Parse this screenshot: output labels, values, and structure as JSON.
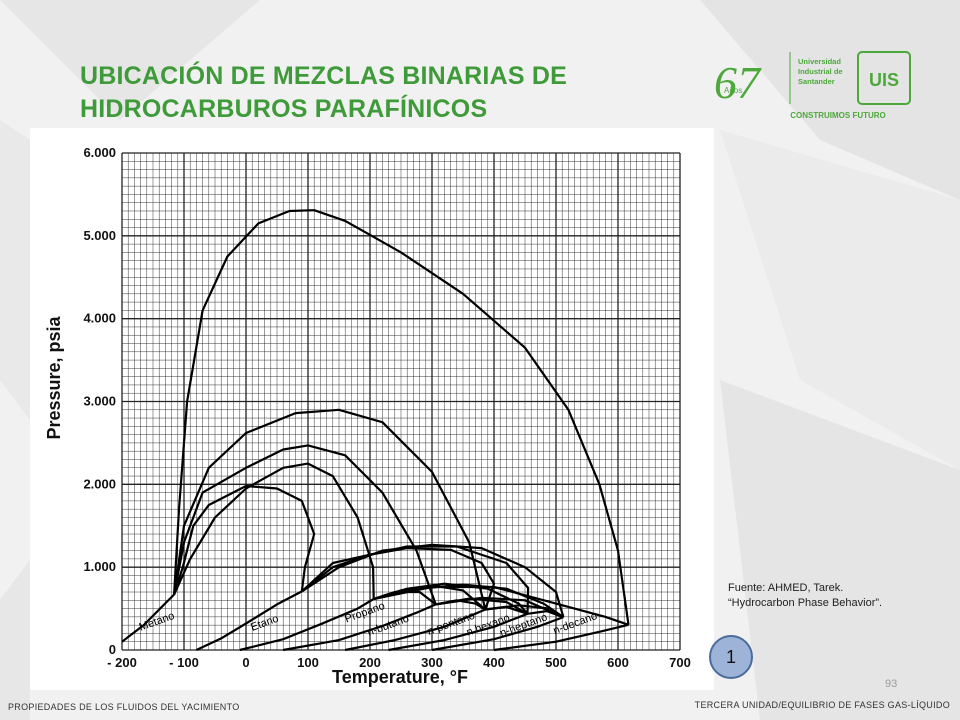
{
  "slide": {
    "title_line1": "UBICACIÓN DE MEZCLAS BINARIAS DE",
    "title_line2": "HIDROCARBUROS PARAFÍNICOS",
    "source_line1": "Fuente: AHMED, Tarek.",
    "source_line2": "“Hydrocarbon Phase Behavior”.",
    "badge": "1",
    "slide_number": "93",
    "footer_left": "PROPIEDADES DE LOS FLUIDOS DEL YACIMIENTO",
    "footer_right": "TERCERA UNIDAD/EQUILIBRIO DE FASES GAS-LÍQUIDO",
    "accent_color": "#3f9a3a"
  },
  "logo": {
    "anniversary_number": "67",
    "anniversary_word": "Años",
    "university_line1": "Universidad",
    "university_line2": "Industrial de",
    "university_line3": "Santander",
    "acronym": "UIS",
    "motto": "CONSTRUIMOS FUTURO",
    "color": "#4da83b"
  },
  "chart_data": {
    "type": "line",
    "xlabel": "Temperature, °F",
    "ylabel": "Pressure, psia",
    "xlim": [
      -200,
      700
    ],
    "ylim": [
      0,
      6000
    ],
    "x_ticks": [
      "- 200",
      "- 100",
      "0",
      "100",
      "200",
      "300",
      "400",
      "500",
      "600",
      "700"
    ],
    "x_tick_values": [
      -200,
      -100,
      0,
      100,
      200,
      300,
      400,
      500,
      600,
      700
    ],
    "y_ticks": [
      "0",
      "1.000",
      "2.000",
      "3.000",
      "4.000",
      "5.000",
      "6.000"
    ],
    "y_tick_values": [
      0,
      1000,
      2000,
      3000,
      4000,
      5000,
      6000
    ],
    "grid": true,
    "component_labels": [
      {
        "text": "Metano",
        "x": -170,
        "y": 230
      },
      {
        "text": "Etano",
        "x": 10,
        "y": 230
      },
      {
        "text": "Propano",
        "x": 162,
        "y": 330
      },
      {
        "text": "n-butano",
        "x": 198,
        "y": 170
      },
      {
        "text": "n-pentano",
        "x": 295,
        "y": 180
      },
      {
        "text": "n hexano",
        "x": 358,
        "y": 170
      },
      {
        "text": "n-heptano",
        "x": 412,
        "y": 160
      },
      {
        "text": "n-decano",
        "x": 498,
        "y": 190
      }
    ],
    "vapor_pressure_curves": [
      {
        "name": "Metano",
        "points": [
          [
            -200,
            100
          ],
          [
            -165,
            300
          ],
          [
            -116,
            670
          ]
        ]
      },
      {
        "name": "Etano",
        "points": [
          [
            -80,
            0
          ],
          [
            -40,
            140
          ],
          [
            0,
            320
          ],
          [
            50,
            550
          ],
          [
            90,
            708
          ]
        ]
      },
      {
        "name": "Propano",
        "points": [
          [
            -10,
            0
          ],
          [
            60,
            130
          ],
          [
            120,
            310
          ],
          [
            180,
            500
          ],
          [
            206,
            616
          ]
        ]
      },
      {
        "name": "n-butano",
        "points": [
          [
            60,
            0
          ],
          [
            150,
            120
          ],
          [
            220,
            290
          ],
          [
            275,
            450
          ],
          [
            306,
            551
          ]
        ]
      },
      {
        "name": "n-pentano",
        "points": [
          [
            160,
            0
          ],
          [
            240,
            120
          ],
          [
            320,
            280
          ],
          [
            386,
            489
          ]
        ]
      },
      {
        "name": "n hexano",
        "points": [
          [
            230,
            0
          ],
          [
            320,
            120
          ],
          [
            400,
            280
          ],
          [
            454,
            437
          ]
        ]
      },
      {
        "name": "n-heptano",
        "points": [
          [
            300,
            0
          ],
          [
            400,
            130
          ],
          [
            470,
            280
          ],
          [
            512,
            397
          ]
        ]
      },
      {
        "name": "n-decano",
        "points": [
          [
            400,
            0
          ],
          [
            500,
            100
          ],
          [
            570,
            220
          ],
          [
            617,
            304
          ]
        ]
      }
    ],
    "critical_loci": [
      {
        "name": "Metano–Etano",
        "points": [
          [
            -116,
            670
          ],
          [
            -102,
            1000
          ],
          [
            -85,
            1500
          ],
          [
            -60,
            1750
          ],
          [
            0,
            1980
          ],
          [
            50,
            1950
          ],
          [
            90,
            1800
          ],
          [
            110,
            1400
          ],
          [
            95,
            1000
          ],
          [
            90,
            708
          ]
        ]
      },
      {
        "name": "Metano–Propano",
        "points": [
          [
            -116,
            670
          ],
          [
            -90,
            1100
          ],
          [
            -50,
            1600
          ],
          [
            0,
            1950
          ],
          [
            60,
            2200
          ],
          [
            100,
            2250
          ],
          [
            140,
            2100
          ],
          [
            180,
            1600
          ],
          [
            205,
            1000
          ],
          [
            206,
            616
          ]
        ]
      },
      {
        "name": "Metano–n-butano",
        "points": [
          [
            -116,
            670
          ],
          [
            -100,
            1300
          ],
          [
            -70,
            1900
          ],
          [
            0,
            2200
          ],
          [
            60,
            2420
          ],
          [
            100,
            2470
          ],
          [
            160,
            2350
          ],
          [
            220,
            1900
          ],
          [
            275,
            1200
          ],
          [
            306,
            551
          ]
        ]
      },
      {
        "name": "Metano–n-pentano",
        "points": [
          [
            -116,
            670
          ],
          [
            -100,
            1500
          ],
          [
            -60,
            2200
          ],
          [
            0,
            2620
          ],
          [
            80,
            2860
          ],
          [
            150,
            2900
          ],
          [
            220,
            2750
          ],
          [
            300,
            2150
          ],
          [
            360,
            1300
          ],
          [
            386,
            489
          ]
        ]
      },
      {
        "name": "Metano–n-decano",
        "points": [
          [
            -116,
            670
          ],
          [
            -108,
            1700
          ],
          [
            -95,
            3000
          ],
          [
            -70,
            4100
          ],
          [
            -30,
            4750
          ],
          [
            20,
            5150
          ],
          [
            70,
            5300
          ],
          [
            110,
            5310
          ],
          [
            160,
            5180
          ],
          [
            250,
            4800
          ],
          [
            350,
            4300
          ],
          [
            450,
            3650
          ],
          [
            520,
            2900
          ],
          [
            570,
            2000
          ],
          [
            600,
            1200
          ],
          [
            617,
            304
          ]
        ]
      },
      {
        "name": "Etano–n-pentano",
        "points": [
          [
            90,
            708
          ],
          [
            140,
            1050
          ],
          [
            200,
            1150
          ],
          [
            260,
            1230
          ],
          [
            330,
            1210
          ],
          [
            380,
            1050
          ],
          [
            400,
            800
          ],
          [
            386,
            489
          ]
        ]
      },
      {
        "name": "Etano–n-hexano",
        "points": [
          [
            90,
            708
          ],
          [
            140,
            1000
          ],
          [
            200,
            1150
          ],
          [
            260,
            1250
          ],
          [
            340,
            1250
          ],
          [
            420,
            1050
          ],
          [
            455,
            750
          ],
          [
            454,
            437
          ]
        ]
      },
      {
        "name": "Etano–n-heptano",
        "points": [
          [
            90,
            708
          ],
          [
            150,
            1000
          ],
          [
            220,
            1200
          ],
          [
            300,
            1270
          ],
          [
            380,
            1230
          ],
          [
            450,
            1000
          ],
          [
            500,
            700
          ],
          [
            512,
            397
          ]
        ]
      },
      {
        "name": "Propano–n-butano",
        "points": [
          [
            206,
            616
          ],
          [
            240,
            700
          ],
          [
            280,
            700
          ],
          [
            306,
            551
          ]
        ]
      },
      {
        "name": "Propano–n-pentano",
        "points": [
          [
            206,
            616
          ],
          [
            250,
            720
          ],
          [
            300,
            780
          ],
          [
            350,
            720
          ],
          [
            386,
            489
          ]
        ]
      },
      {
        "name": "Propano–n-hexano",
        "points": [
          [
            206,
            616
          ],
          [
            260,
            740
          ],
          [
            320,
            800
          ],
          [
            390,
            740
          ],
          [
            440,
            560
          ],
          [
            454,
            437
          ]
        ]
      },
      {
        "name": "Propano–n-heptano",
        "points": [
          [
            206,
            616
          ],
          [
            280,
            740
          ],
          [
            350,
            790
          ],
          [
            420,
            740
          ],
          [
            480,
            560
          ],
          [
            512,
            397
          ]
        ]
      },
      {
        "name": "Propano–n-decano",
        "points": [
          [
            206,
            616
          ],
          [
            300,
            760
          ],
          [
            400,
            760
          ],
          [
            500,
            560
          ],
          [
            580,
            400
          ],
          [
            617,
            304
          ]
        ]
      },
      {
        "name": "n-butano–n-pentano",
        "points": [
          [
            306,
            551
          ],
          [
            340,
            600
          ],
          [
            370,
            560
          ],
          [
            386,
            489
          ]
        ]
      },
      {
        "name": "n-butano–n-hexano",
        "points": [
          [
            306,
            551
          ],
          [
            360,
            620
          ],
          [
            420,
            580
          ],
          [
            454,
            437
          ]
        ]
      },
      {
        "name": "n-butano–n-heptano",
        "points": [
          [
            306,
            551
          ],
          [
            380,
            630
          ],
          [
            450,
            600
          ],
          [
            512,
            397
          ]
        ]
      },
      {
        "name": "n-pentano–n-hexano",
        "points": [
          [
            386,
            489
          ],
          [
            420,
            520
          ],
          [
            454,
            437
          ]
        ]
      },
      {
        "name": "n-pentano–n-heptano",
        "points": [
          [
            386,
            489
          ],
          [
            440,
            540
          ],
          [
            490,
            500
          ],
          [
            512,
            397
          ]
        ]
      },
      {
        "name": "n-hexano–n-heptano",
        "points": [
          [
            454,
            437
          ],
          [
            485,
            470
          ],
          [
            512,
            397
          ]
        ]
      }
    ]
  }
}
